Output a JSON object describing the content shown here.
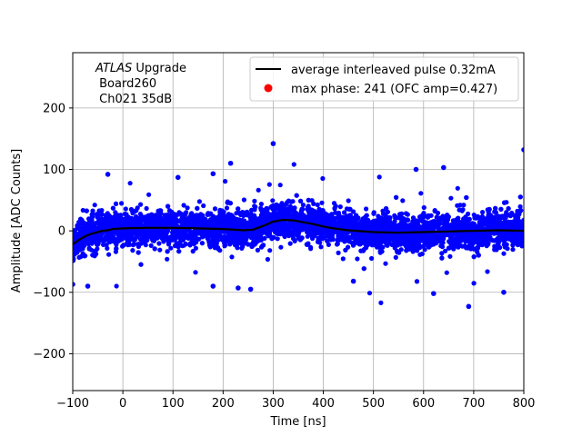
{
  "chart_data": {
    "type": "scatter",
    "xlabel": "Time [ns]",
    "ylabel": "Amplitude [ADC Counts]",
    "xlim": [
      -100,
      800
    ],
    "ylim": [
      -260,
      290
    ],
    "grid": true,
    "xticks": [
      -100,
      0,
      100,
      200,
      300,
      400,
      500,
      600,
      700,
      800
    ],
    "yticks": [
      -200,
      -100,
      0,
      100,
      200
    ],
    "xtick_labels": [
      "−100",
      "0",
      "100",
      "200",
      "300",
      "400",
      "500",
      "600",
      "700",
      "800"
    ],
    "ytick_labels": [
      "−200",
      "−100",
      "0",
      "100",
      "200"
    ],
    "annotation": {
      "line1_italic": "ATLAS",
      "line1_rest": " Upgrade",
      "line2": " Board260",
      "line3": " Ch021 35dB"
    },
    "legend": {
      "placement": "top-right",
      "entries": [
        "average interleaved pulse 0.32mA",
        "max phase: 241 (OFC amp=0.427)"
      ]
    },
    "series": [
      {
        "name": "average interleaved pulse 0.32mA",
        "kind": "line",
        "color": "#000000",
        "x": [
          -100,
          -90,
          -80,
          -70,
          -60,
          -50,
          -40,
          -30,
          -20,
          0,
          50,
          100,
          150,
          200,
          240,
          260,
          280,
          300,
          320,
          340,
          360,
          380,
          400,
          420,
          450,
          500,
          550,
          600,
          650,
          700,
          750,
          800
        ],
        "y": [
          -22,
          -16,
          -11,
          -7,
          -4,
          -2,
          0,
          1,
          3,
          4,
          5,
          5,
          4,
          3,
          1,
          2,
          8,
          15,
          18,
          17,
          14,
          11,
          7,
          4,
          1,
          -2,
          -3,
          -2,
          -1,
          0,
          1,
          0
        ]
      },
      {
        "name": "max phase: 241 (OFC amp=0.427)",
        "kind": "scatter",
        "color": "#ff0000",
        "x": [],
        "y": []
      }
    ],
    "samples": {
      "color": "#0000ff",
      "spread": 22,
      "outliers": [
        {
          "x": 300,
          "y": 142
        },
        {
          "x": 800,
          "y": 132
        },
        {
          "x": 215,
          "y": 110
        },
        {
          "x": 640,
          "y": 103
        },
        {
          "x": 585,
          "y": 100
        },
        {
          "x": -30,
          "y": 92
        },
        {
          "x": 180,
          "y": 93
        },
        {
          "x": 110,
          "y": 87
        },
        {
          "x": 690,
          "y": -123
        },
        {
          "x": 620,
          "y": -102
        },
        {
          "x": -100,
          "y": -87
        },
        {
          "x": -70,
          "y": -90
        },
        {
          "x": 180,
          "y": -90
        },
        {
          "x": 255,
          "y": -95
        },
        {
          "x": 230,
          "y": -93
        },
        {
          "x": 760,
          "y": -100
        },
        {
          "x": 460,
          "y": -82
        }
      ]
    }
  }
}
